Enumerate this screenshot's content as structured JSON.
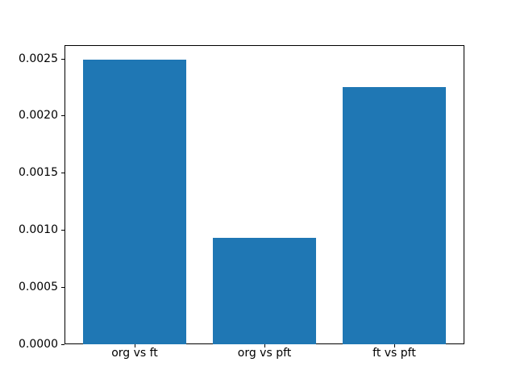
{
  "figure": {
    "background_color": "#ffffff",
    "title": ""
  },
  "chart_data": {
    "type": "bar",
    "title": "",
    "xlabel": "",
    "ylabel": "",
    "categories": [
      "org vs ft",
      "org vs pft",
      "ft vs pft"
    ],
    "values": [
      0.00249,
      0.00093,
      0.00225
    ],
    "bar_width": 0.8,
    "bar_color": "#1f77b4",
    "axis_color": "#000000",
    "grid": false,
    "legend": null,
    "xlim": [
      -0.54,
      2.54
    ],
    "ylim": [
      0,
      0.00262
    ],
    "yticks": [
      0.0,
      0.0005,
      0.001,
      0.0015,
      0.002,
      0.0025
    ],
    "ytick_labels": [
      "0.0000",
      "0.0005",
      "0.0010",
      "0.0015",
      "0.0020",
      "0.0025"
    ]
  }
}
